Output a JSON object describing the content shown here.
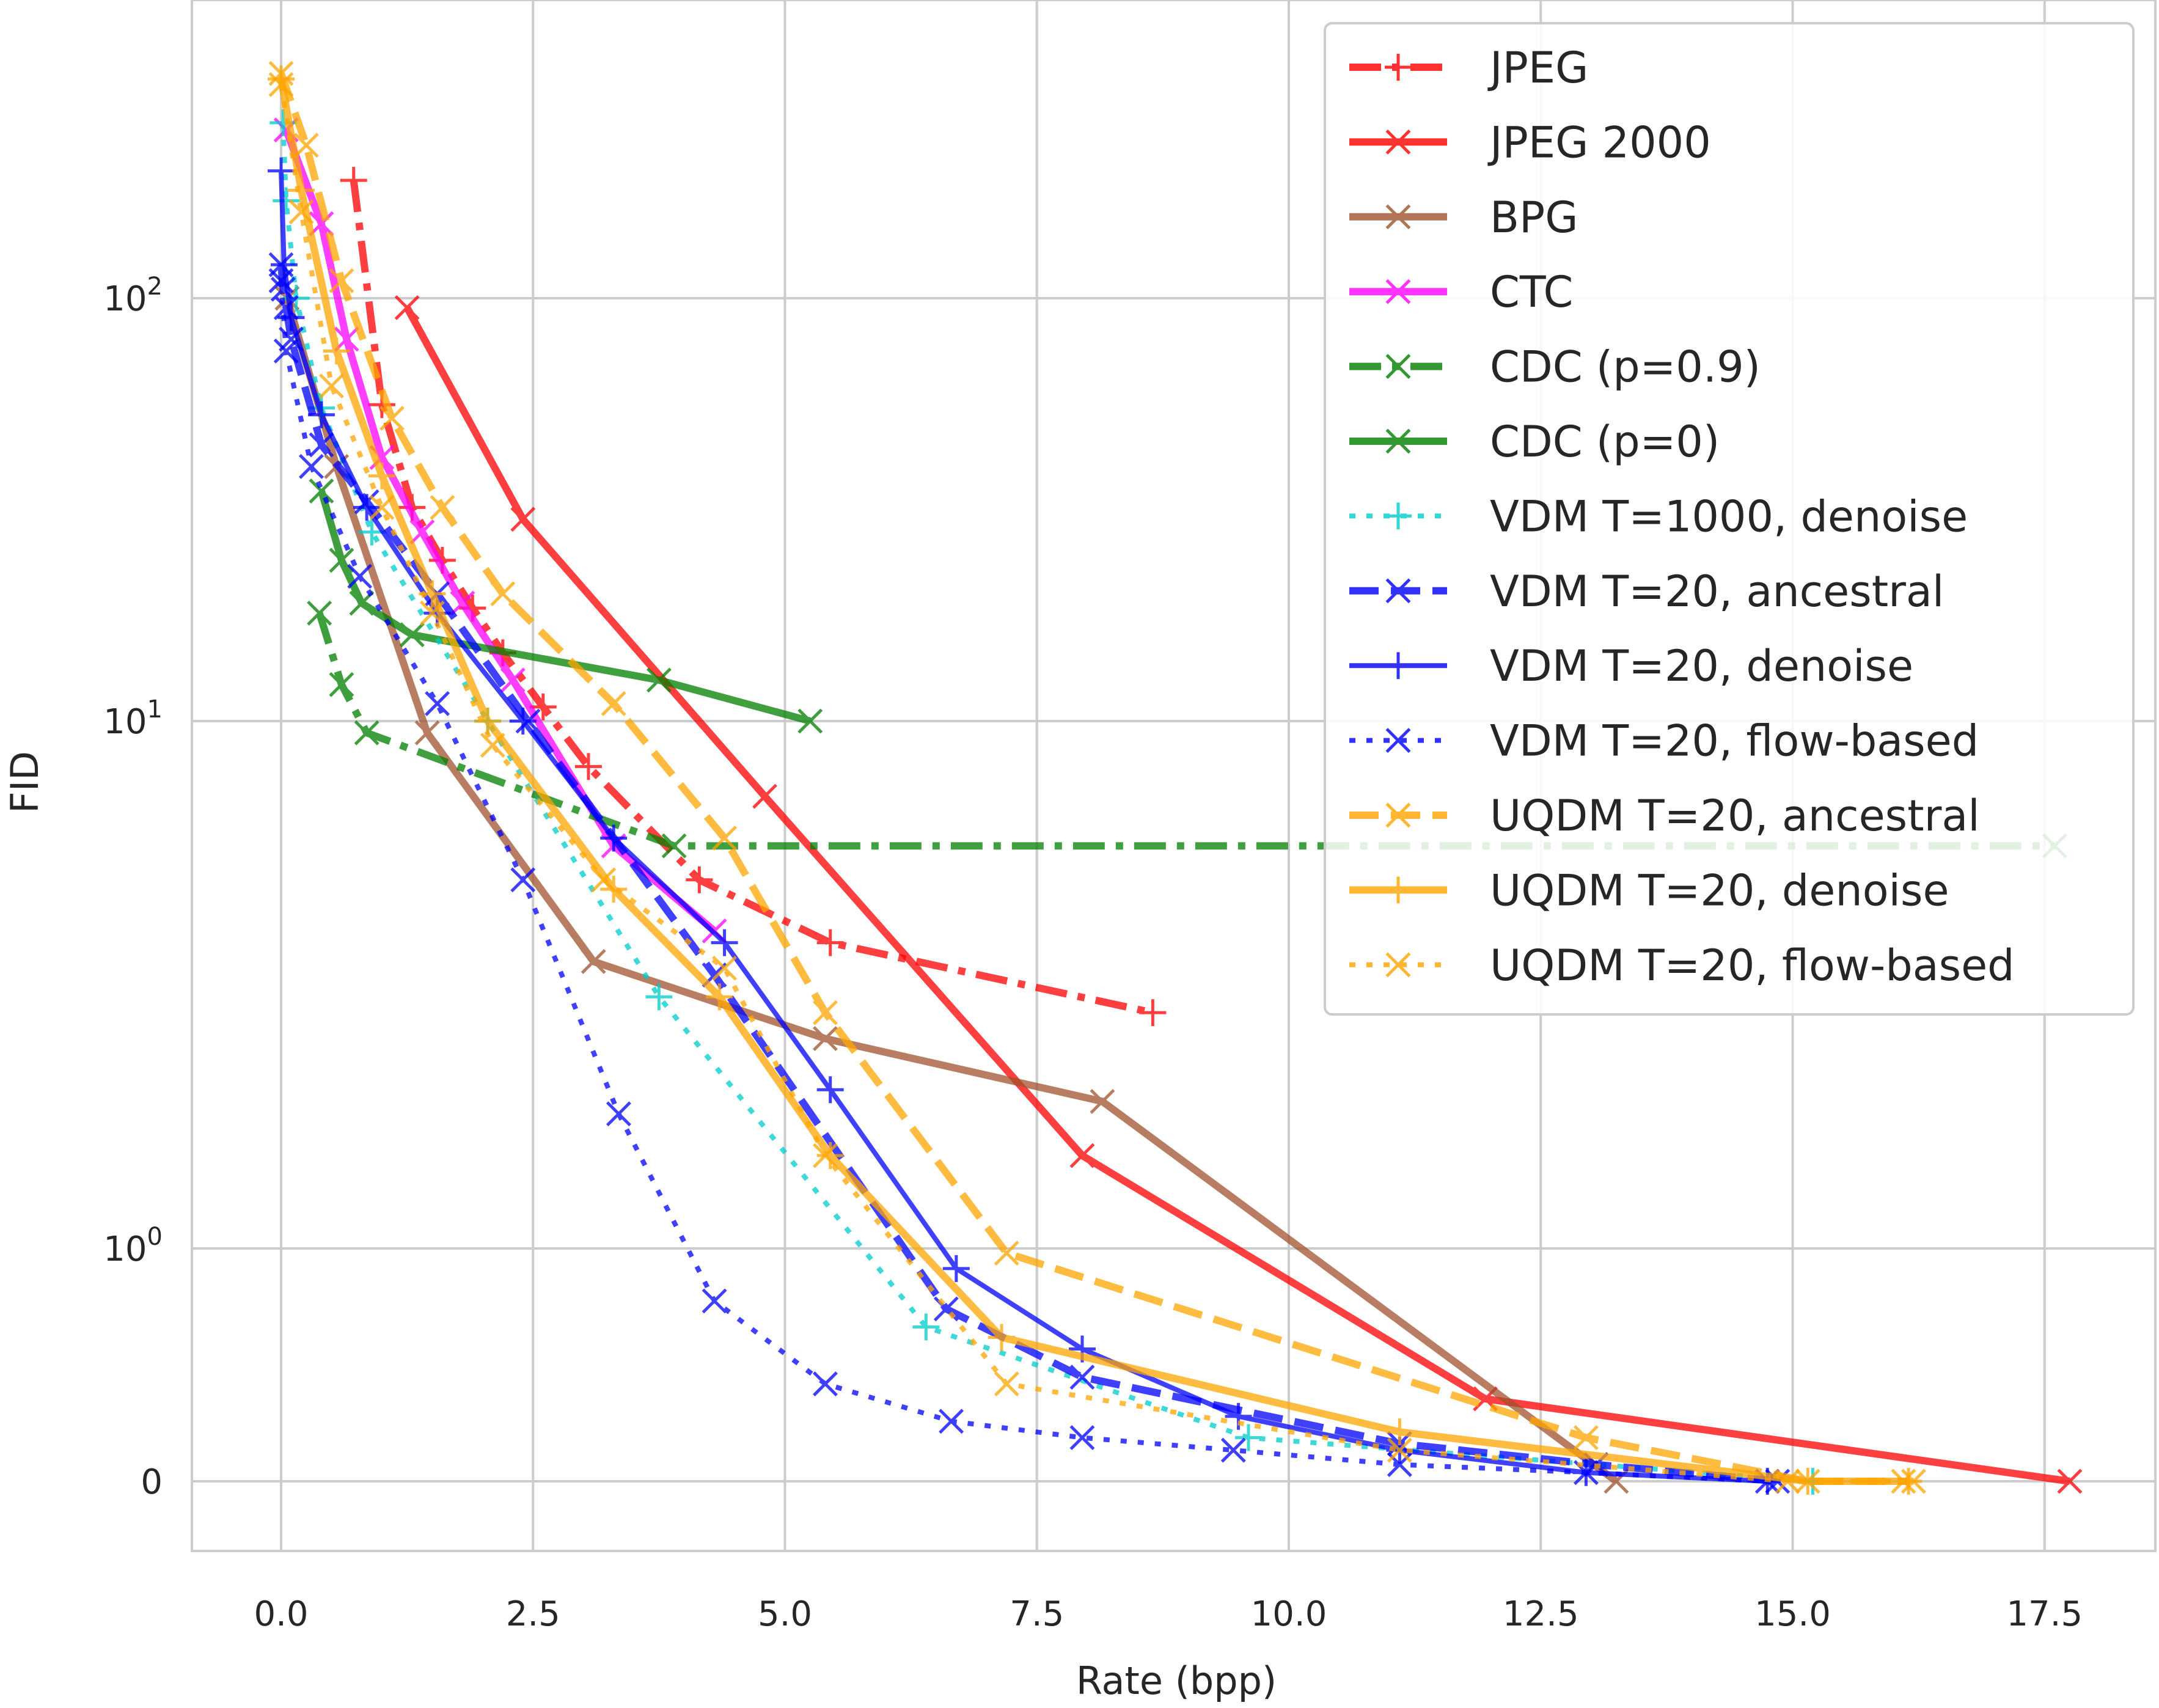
{
  "chart_data": {
    "type": "line",
    "title": "",
    "xlabel": "Rate (bpp)",
    "ylabel": "FID",
    "xlim": [
      -0.9,
      18.3
    ],
    "yscale": "symlog",
    "ylim": [
      -0.3,
      650
    ],
    "grid": true,
    "legend_position": "top-right",
    "x_ticks": [
      0,
      2.5,
      5,
      7.5,
      10,
      12.5,
      15,
      17.5
    ],
    "x_tick_labels": [
      "0.0",
      "2.5",
      "5.0",
      "7.5",
      "10.0",
      "12.5",
      "15.0",
      "17.5"
    ],
    "y_ticks": [
      {
        "value": 0,
        "base": "0",
        "exp": ""
      },
      {
        "value": 1,
        "base": "10",
        "exp": "0"
      },
      {
        "value": 10,
        "base": "10",
        "exp": "1"
      },
      {
        "value": 100,
        "base": "10",
        "exp": "2"
      }
    ],
    "series": [
      {
        "name": "JPEG",
        "color": "#ff0000",
        "dash": "dashdot",
        "marker": "plus",
        "x": [
          0.72,
          1.0,
          1.3,
          1.6,
          1.9,
          2.2,
          2.6,
          3.05,
          4.15,
          5.45,
          8.65
        ],
        "y": [
          190,
          56,
          32,
          24,
          18.5,
          14.5,
          10.8,
          8.2,
          5.0,
          3.8,
          2.8
        ]
      },
      {
        "name": "JPEG 2000",
        "color": "#ff0000",
        "dash": "solid",
        "marker": "x",
        "x": [
          1.25,
          2.4,
          4.8,
          7.95,
          11.95,
          17.75
        ],
        "y": [
          95,
          30,
          7.2,
          1.5,
          0.14,
          0.0
        ]
      },
      {
        "name": "BPG",
        "color": "#a0522d",
        "dash": "solid",
        "marker": "x",
        "x": [
          0.06,
          0.55,
          1.45,
          3.1,
          5.4,
          8.15,
          13.25
        ],
        "y": [
          100,
          40,
          9.5,
          3.5,
          2.5,
          1.9,
          0.0
        ]
      },
      {
        "name": "CTC",
        "color": "#ff00ff",
        "dash": "solid",
        "marker": "x",
        "x": [
          0.05,
          0.4,
          0.65,
          1.0,
          1.4,
          1.8,
          2.3,
          3.3,
          4.3
        ],
        "y": [
          250,
          150,
          80,
          42,
          28,
          19,
          12.5,
          5.8,
          4.0
        ]
      },
      {
        "name": "CDC (p=0.9)",
        "color": "#008000",
        "dash": "dashdot",
        "marker": "x",
        "x": [
          0.38,
          0.6,
          0.85,
          3.9,
          17.6
        ],
        "y": [
          18,
          12.2,
          9.5,
          5.8,
          5.8
        ]
      },
      {
        "name": "CDC (p=0)",
        "color": "#008000",
        "dash": "solid",
        "marker": "x",
        "x": [
          0.4,
          0.6,
          0.8,
          1.3,
          3.75,
          5.25
        ],
        "y": [
          35,
          24,
          19,
          16,
          12.5,
          10
        ]
      },
      {
        "name": "VDM T=1000, denoise",
        "color": "#00cccc",
        "dash": "dotted",
        "marker": "plus",
        "x": [
          0.02,
          0.05,
          0.15,
          0.4,
          0.9,
          2.05,
          3.75,
          6.4,
          9.6,
          15.2
        ],
        "y": [
          260,
          170,
          100,
          55,
          28,
          10,
          3.0,
          0.4,
          0.06,
          0.0
        ]
      },
      {
        "name": "VDM T=20, ancestral",
        "color": "#0000ff",
        "dash": "dashed",
        "marker": "x",
        "x": [
          0.0,
          0.02,
          0.05,
          0.1,
          0.4,
          0.85,
          1.55,
          2.45,
          4.3,
          6.6,
          7.95,
          11.1,
          13.05,
          14.85
        ],
        "y": [
          120,
          105,
          95,
          80,
          45,
          33,
          20,
          10,
          3.3,
          0.5,
          0.2,
          0.05,
          0.02,
          0.0
        ]
      },
      {
        "name": "VDM T=20, denoise",
        "color": "#0000ff",
        "dash": "solid",
        "marker": "plus",
        "x": [
          0.0,
          0.03,
          0.1,
          0.4,
          0.85,
          1.55,
          2.4,
          3.3,
          4.4,
          5.45,
          6.7,
          7.95,
          9.5,
          11.1,
          12.95,
          14.75
        ],
        "y": [
          200,
          120,
          90,
          53,
          32,
          18,
          10,
          6.0,
          3.8,
          2.0,
          0.8,
          0.3,
          0.1,
          0.04,
          0.01,
          0.0
        ]
      },
      {
        "name": "VDM T=20, flow-based",
        "color": "#0000ff",
        "dash": "dotted",
        "marker": "x",
        "x": [
          0.0,
          0.05,
          0.3,
          0.78,
          1.55,
          2.4,
          3.35,
          4.3,
          5.4,
          6.65,
          7.95,
          9.45,
          11.1,
          12.95,
          14.75
        ],
        "y": [
          110,
          75,
          40,
          22,
          11,
          5.0,
          1.8,
          0.55,
          0.18,
          0.09,
          0.06,
          0.04,
          0.02,
          0.01,
          0.0
        ]
      },
      {
        "name": "UQDM T=20, ancestral",
        "color": "#ffa500",
        "dash": "dashed",
        "marker": "x",
        "x": [
          0.0,
          0.25,
          0.6,
          1.1,
          1.6,
          2.2,
          3.3,
          4.4,
          5.4,
          7.2,
          12.95,
          15.15,
          16.2
        ],
        "y": [
          340,
          230,
          110,
          52,
          32,
          20,
          11,
          6.0,
          2.8,
          0.95,
          0.06,
          0.0,
          0.0
        ]
      },
      {
        "name": "UQDM T=20, denoise",
        "color": "#ffa500",
        "dash": "solid",
        "marker": "plus",
        "x": [
          0.0,
          0.2,
          0.55,
          1.0,
          1.5,
          2.05,
          3.3,
          4.35,
          5.45,
          7.15,
          11.1,
          15.15,
          16.15
        ],
        "y": [
          330,
          180,
          75,
          38,
          20,
          10,
          4.8,
          3.0,
          1.5,
          0.35,
          0.07,
          0.0,
          0.0
        ]
      },
      {
        "name": "UQDM T=20, flow-based",
        "color": "#ffa500",
        "dash": "dotted",
        "marker": "x",
        "x": [
          0.0,
          0.2,
          0.5,
          1.0,
          1.5,
          2.1,
          3.2,
          4.4,
          5.4,
          7.2,
          11.1,
          14.95,
          16.1
        ],
        "y": [
          320,
          160,
          62,
          32,
          18,
          9.0,
          5.0,
          3.4,
          1.5,
          0.18,
          0.04,
          0.0,
          0.0
        ]
      }
    ]
  }
}
